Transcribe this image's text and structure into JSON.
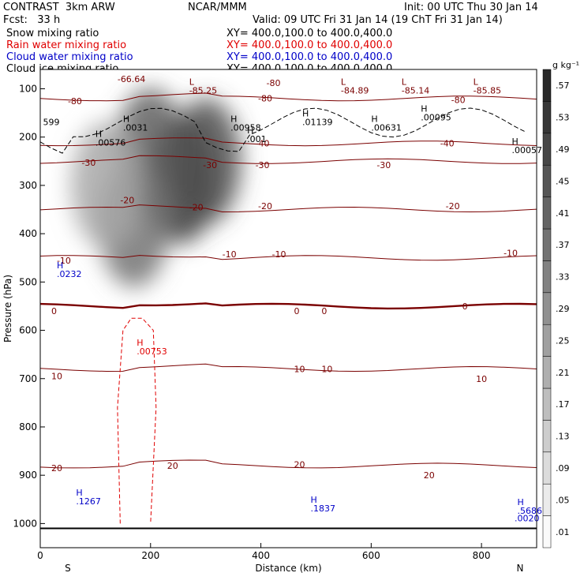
{
  "header": {
    "title": "CONTRAST  3km ARW",
    "center": "NCAR/MMM",
    "init": "Init: 00 UTC Thu 30 Jan 14",
    "fcst": "Fcst:   33 h",
    "valid": "Valid: 09 UTC Fri 31 Jan 14 (19 ChT Fri 31 Jan 14)",
    "fields": [
      {
        "name": "Snow mixing ratio",
        "xy": "XY= 400.0,100.0 to 400.0,400.0",
        "color": "#000000"
      },
      {
        "name": "Rain water mixing ratio",
        "xy": "XY= 400.0,100.0 to 400.0,400.0",
        "color": "#e00000"
      },
      {
        "name": "Cloud water mixing ratio",
        "xy": "XY= 400.0,100.0 to 400.0,400.0",
        "color": "#0000c8"
      },
      {
        "name": "Cloud ice mixing ratio",
        "xy": "XY= 400.0,100.0 to 400.0,400.0",
        "color": "#000000"
      }
    ]
  },
  "chart_data": {
    "type": "heatmap",
    "xlabel": "Distance (km)",
    "ylabel": "Pressure (hPa)",
    "xlim": [
      0,
      900
    ],
    "ylim": [
      1050,
      60
    ],
    "x_ticks": [
      0,
      200,
      400,
      600,
      800
    ],
    "y_ticks": [
      100,
      200,
      300,
      400,
      500,
      600,
      700,
      800,
      900,
      1000
    ],
    "x_end_labels": {
      "left": "S",
      "right": "N"
    },
    "colorbar": {
      "unit": "g kg⁻¹",
      "levels": [
        ".01",
        ".05",
        ".09",
        ".13",
        ".17",
        ".21",
        ".25",
        ".29",
        ".33",
        ".37",
        ".41",
        ".45",
        ".49",
        ".53",
        ".57"
      ]
    },
    "snow_cores": [
      {
        "x": 255,
        "p": 290,
        "max": 0.57
      },
      {
        "x": 200,
        "p": 230,
        "max": 0.45
      },
      {
        "x": 170,
        "p": 380,
        "max": 0.4
      },
      {
        "x": 300,
        "p": 250,
        "max": 0.5
      },
      {
        "x": 120,
        "p": 300,
        "max": 0.25
      }
    ],
    "temperature_isotherms": [
      {
        "label": "-80",
        "p": 120
      },
      {
        "label": "-40",
        "p": 213
      },
      {
        "label": "-30",
        "p": 250
      },
      {
        "label": "-20",
        "p": 350
      },
      {
        "label": "-10",
        "p": 450
      },
      {
        "label": "0",
        "p": 550
      },
      {
        "label": "10",
        "p": 680
      },
      {
        "label": "20",
        "p": 880
      }
    ],
    "temperature_labels": [
      {
        "text": "-66.64",
        "x": 140,
        "p": 80
      },
      {
        "text": "-80",
        "x": 50,
        "p": 125
      },
      {
        "text": "-80",
        "x": 410,
        "p": 88
      },
      {
        "text": "-80",
        "x": 395,
        "p": 120
      },
      {
        "text": "-80",
        "x": 745,
        "p": 123
      },
      {
        "text": "-40",
        "x": 390,
        "p": 213
      },
      {
        "text": "-40",
        "x": 725,
        "p": 213
      },
      {
        "text": "-30",
        "x": 75,
        "p": 253
      },
      {
        "text": "-30",
        "x": 295,
        "p": 258
      },
      {
        "text": "-30",
        "x": 390,
        "p": 258
      },
      {
        "text": "-30",
        "x": 610,
        "p": 258
      },
      {
        "text": "-20",
        "x": 145,
        "p": 330
      },
      {
        "text": "-20",
        "x": 270,
        "p": 345
      },
      {
        "text": "-20",
        "x": 395,
        "p": 343
      },
      {
        "text": "-20",
        "x": 735,
        "p": 343
      },
      {
        "text": "-10",
        "x": 30,
        "p": 455
      },
      {
        "text": "-10",
        "x": 330,
        "p": 442
      },
      {
        "text": "-10",
        "x": 420,
        "p": 442
      },
      {
        "text": "-10",
        "x": 840,
        "p": 440
      },
      {
        "text": "0",
        "x": 20,
        "p": 560
      },
      {
        "text": "0",
        "x": 460,
        "p": 560
      },
      {
        "text": "0",
        "x": 510,
        "p": 560
      },
      {
        "text": "0",
        "x": 765,
        "p": 550
      },
      {
        "text": "10",
        "x": 20,
        "p": 695
      },
      {
        "text": "10",
        "x": 460,
        "p": 680
      },
      {
        "text": "10",
        "x": 510,
        "p": 680
      },
      {
        "text": "10",
        "x": 790,
        "p": 700
      },
      {
        "text": "20",
        "x": 20,
        "p": 885
      },
      {
        "text": "20",
        "x": 230,
        "p": 880
      },
      {
        "text": "20",
        "x": 460,
        "p": 878
      },
      {
        "text": "20",
        "x": 695,
        "p": 900
      }
    ],
    "temperature_extrema": [
      {
        "type": "L",
        "value": "-85.25",
        "x": 270,
        "p": 110
      },
      {
        "type": "L",
        "value": "-84.89",
        "x": 545,
        "p": 110
      },
      {
        "type": "L",
        "value": "-85.14",
        "x": 655,
        "p": 110
      },
      {
        "type": "L",
        "value": "-85.85",
        "x": 785,
        "p": 110
      }
    ],
    "cloud_ice_maxima": [
      {
        "type": "H",
        "value": ".0031",
        "x": 150,
        "p": 187
      },
      {
        "type": "H",
        "value": ".00576",
        "x": 100,
        "p": 218
      },
      {
        "type": "H",
        "value": ".00958",
        "x": 345,
        "p": 187
      },
      {
        "type": "H",
        "value": ".001",
        "x": 375,
        "p": 210
      },
      {
        "type": "H",
        "value": ".01139",
        "x": 475,
        "p": 175
      },
      {
        "type": "H",
        "value": ".00631",
        "x": 600,
        "p": 187
      },
      {
        "type": "H",
        "value": ".00095",
        "x": 690,
        "p": 165
      },
      {
        "type": "H",
        "value": ".00057",
        "x": 855,
        "p": 233
      },
      {
        "type": "",
        "value": "599",
        "x": 5,
        "p": 175
      }
    ],
    "rain_maxima": [
      {
        "type": "H",
        "value": ".00753",
        "x": 175,
        "p": 650
      }
    ],
    "cloud_water_maxima": [
      {
        "type": "H",
        "value": ".0232",
        "x": 30,
        "p": 490
      },
      {
        "type": "H",
        "value": ".1267",
        "x": 65,
        "p": 960
      },
      {
        "type": "H",
        "value": ".1837",
        "x": 490,
        "p": 975
      },
      {
        "type": "H",
        "value": ".5686",
        "x": 865,
        "p": 980
      },
      {
        "type": "",
        "value": ".0020",
        "x": 860,
        "p": 995
      }
    ]
  }
}
